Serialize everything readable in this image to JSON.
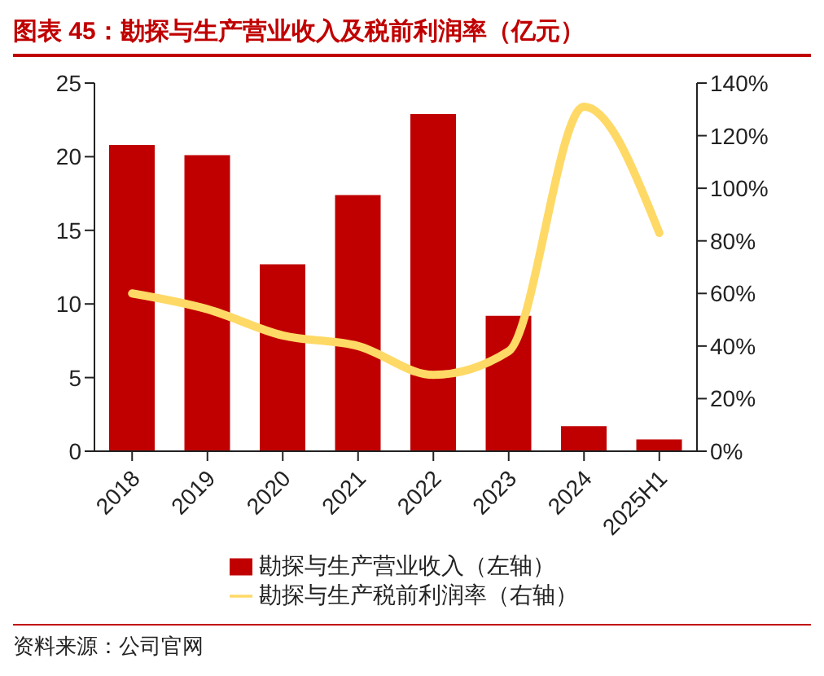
{
  "chart_data": {
    "type": "bar",
    "title": "图表 45：勘探与生产营业收入及税前利润率（亿元）",
    "categories": [
      "2018",
      "2019",
      "2020",
      "2021",
      "2022",
      "2023",
      "2024",
      "2025H1"
    ],
    "series": [
      {
        "name": "勘探与生产营业收入（左轴）",
        "color": "#c00000",
        "values": [
          20.8,
          20.1,
          12.7,
          17.4,
          22.9,
          9.2,
          1.7,
          0.8
        ]
      },
      {
        "name": "勘探与生产税前利润率（右轴）",
        "type": "line",
        "axis": "y2",
        "color": "#ffd966",
        "values": [
          60,
          54,
          44,
          40,
          29,
          38,
          131,
          83
        ]
      }
    ],
    "ylim": [
      0,
      25
    ],
    "yticks": [
      0,
      5,
      10,
      15,
      20,
      25
    ],
    "y2lim": [
      0,
      140
    ],
    "y2ticks": [
      {
        "value": 0,
        "label": "0%"
      },
      {
        "value": 20,
        "label": "20%"
      },
      {
        "value": 40,
        "label": "40%"
      },
      {
        "value": 60,
        "label": "60%"
      },
      {
        "value": 80,
        "label": "80%"
      },
      {
        "value": 100,
        "label": "100%"
      },
      {
        "value": 120,
        "label": "120%"
      },
      {
        "value": 140,
        "label": "140%"
      }
    ],
    "legend": "bottom",
    "grid": false,
    "marker": "none",
    "annotations": [
      "资料来源：公司官网"
    ]
  }
}
